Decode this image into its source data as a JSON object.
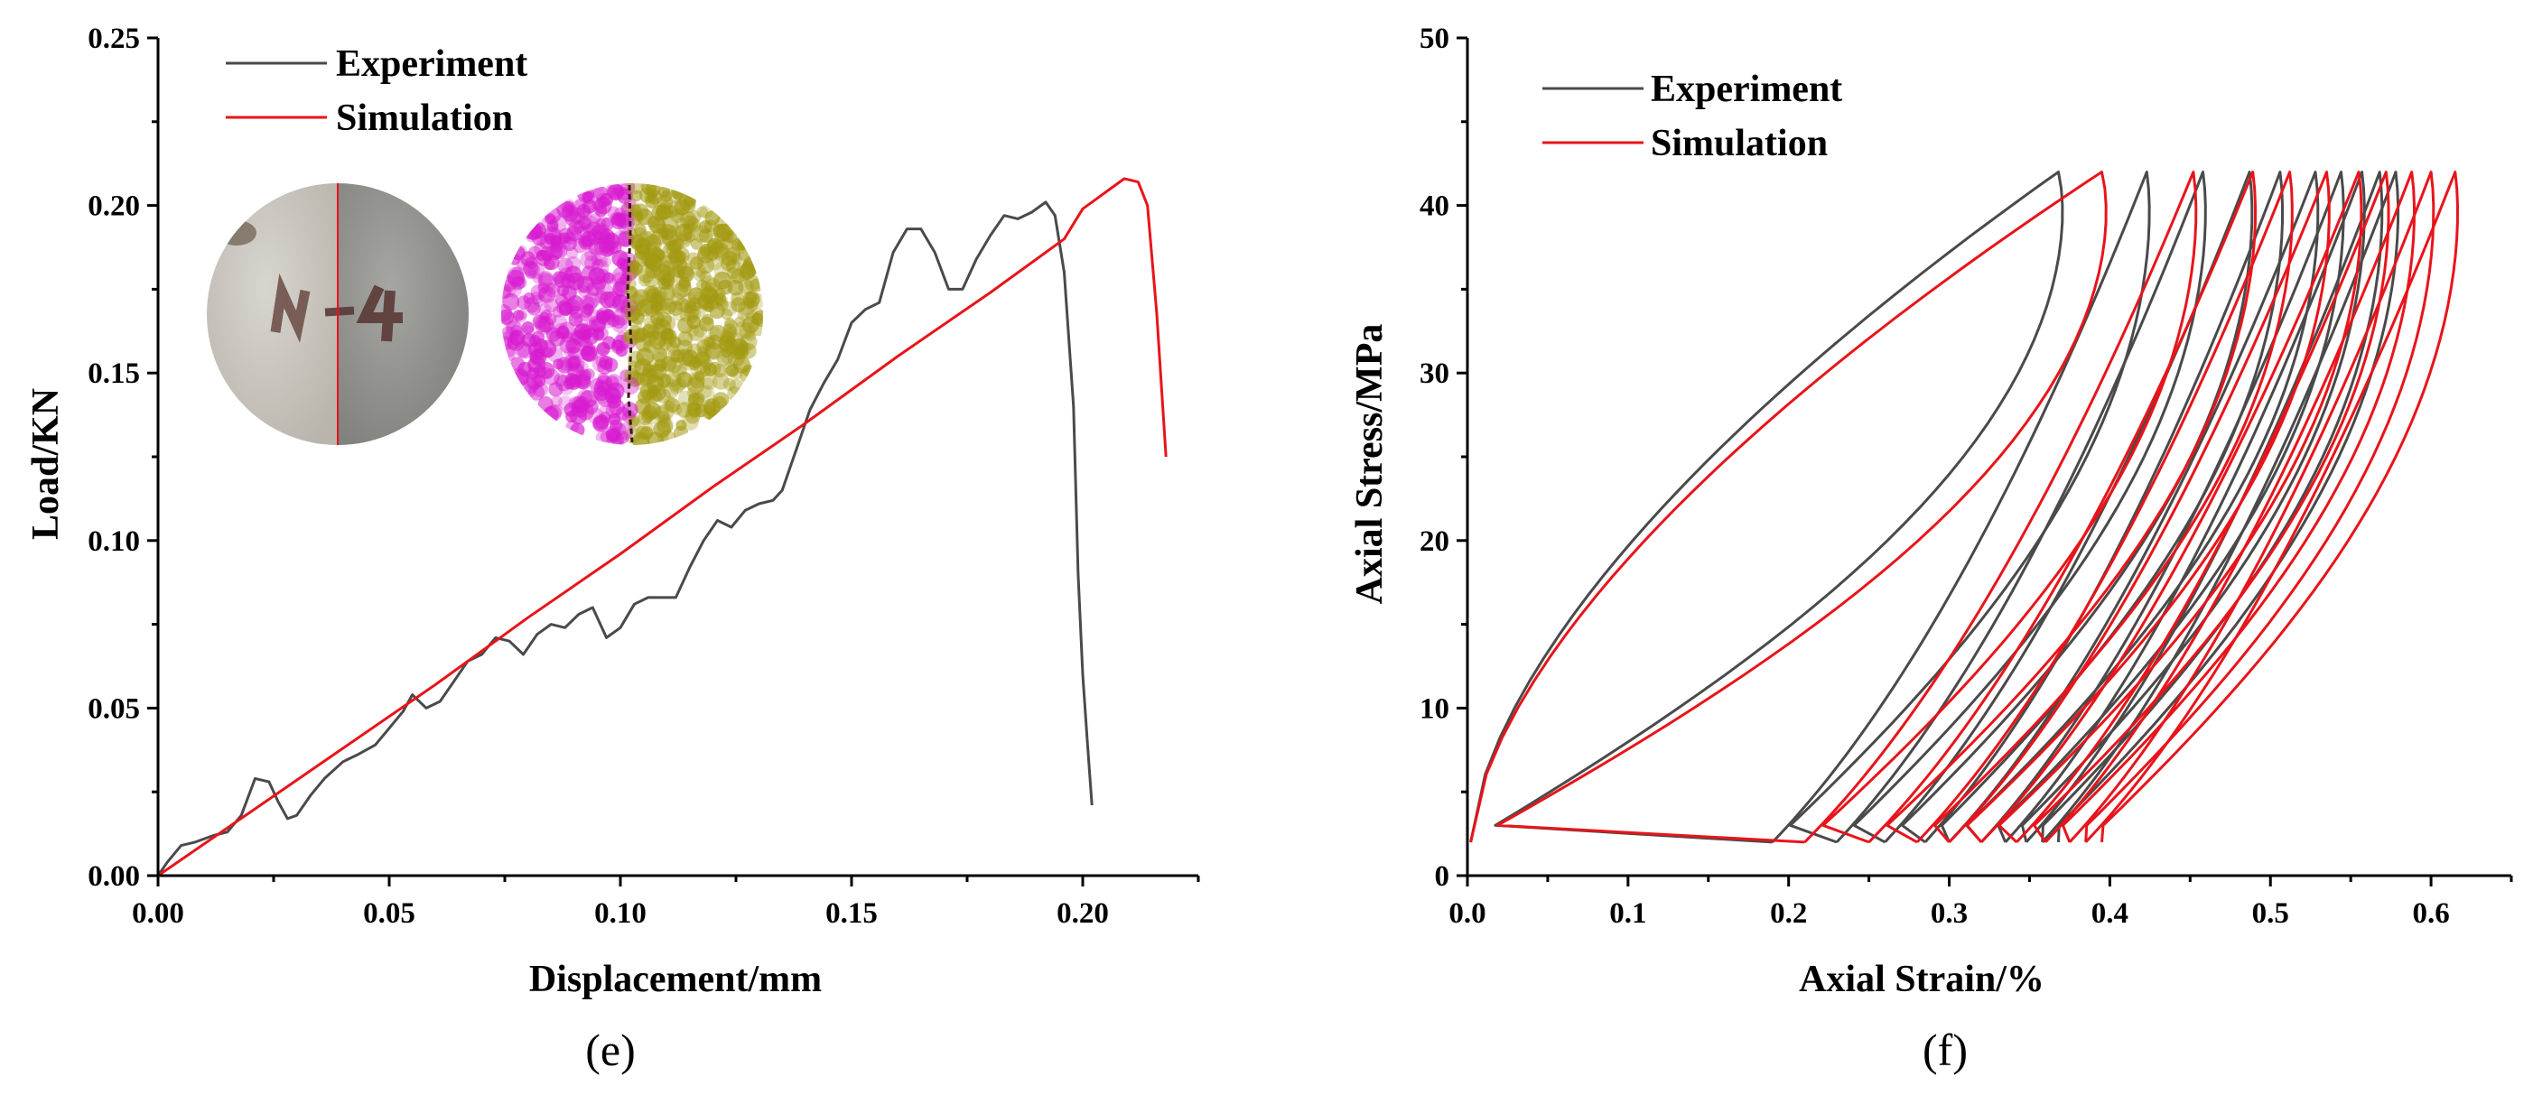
{
  "figure": {
    "panel_labels": [
      "(e)",
      "(f)"
    ]
  },
  "colors": {
    "experiment": "#4a4a4a",
    "simulation": "#e8141b",
    "axis": "#000000",
    "rock_light": "#cfccc4",
    "rock_dark": "#8e8e8b",
    "particle_magenta": "#d81bd0",
    "particle_olive": "#a39a12"
  },
  "chart_data": [
    {
      "type": "line",
      "panel": "(e)",
      "title": "",
      "xlabel": "Displacement/mm",
      "ylabel": "Load/KN",
      "xlim": [
        0,
        0.225
      ],
      "ylim": [
        0,
        0.25
      ],
      "xticks": [
        0.0,
        0.05,
        0.1,
        0.15,
        0.2
      ],
      "xtick_labels": [
        "0.00",
        "0.05",
        "0.10",
        "0.15",
        "0.20"
      ],
      "yticks": [
        0.0,
        0.05,
        0.1,
        0.15,
        0.2,
        0.25
      ],
      "ytick_labels": [
        "0.00",
        "0.05",
        "0.10",
        "0.15",
        "0.20",
        "0.25"
      ],
      "legend": [
        "Experiment",
        "Simulation"
      ],
      "legend_position": "top-left",
      "inset": "specimen photo with marking and DEM particle model (split halves)",
      "series": [
        {
          "name": "Experiment",
          "x": [
            0,
            0.002,
            0.005,
            0.008,
            0.012,
            0.015,
            0.018,
            0.021,
            0.024,
            0.026,
            0.028,
            0.03,
            0.033,
            0.036,
            0.04,
            0.043,
            0.047,
            0.05,
            0.053,
            0.055,
            0.058,
            0.061,
            0.064,
            0.067,
            0.07,
            0.073,
            0.076,
            0.079,
            0.082,
            0.085,
            0.088,
            0.091,
            0.094,
            0.097,
            0.1,
            0.103,
            0.106,
            0.109,
            0.112,
            0.115,
            0.118,
            0.121,
            0.124,
            0.127,
            0.13,
            0.133,
            0.135,
            0.138,
            0.141,
            0.144,
            0.147,
            0.15,
            0.153,
            0.156,
            0.159,
            0.162,
            0.165,
            0.168,
            0.171,
            0.174,
            0.177,
            0.18,
            0.183,
            0.186,
            0.189,
            0.192,
            0.194,
            0.196,
            0.198,
            0.199,
            0.2,
            0.201,
            0.202
          ],
          "y": [
            0,
            0.004,
            0.009,
            0.01,
            0.012,
            0.013,
            0.018,
            0.029,
            0.028,
            0.022,
            0.017,
            0.018,
            0.024,
            0.029,
            0.034,
            0.036,
            0.039,
            0.044,
            0.049,
            0.054,
            0.05,
            0.052,
            0.058,
            0.064,
            0.066,
            0.071,
            0.07,
            0.066,
            0.072,
            0.075,
            0.074,
            0.078,
            0.08,
            0.071,
            0.074,
            0.081,
            0.083,
            0.083,
            0.083,
            0.092,
            0.1,
            0.106,
            0.104,
            0.109,
            0.111,
            0.112,
            0.115,
            0.127,
            0.139,
            0.147,
            0.154,
            0.165,
            0.169,
            0.171,
            0.186,
            0.193,
            0.193,
            0.186,
            0.175,
            0.175,
            0.184,
            0.191,
            0.197,
            0.196,
            0.198,
            0.201,
            0.197,
            0.18,
            0.14,
            0.09,
            0.06,
            0.04,
            0.021
          ]
        },
        {
          "name": "Simulation",
          "x": [
            0,
            0.02,
            0.04,
            0.06,
            0.08,
            0.1,
            0.12,
            0.14,
            0.16,
            0.18,
            0.19,
            0.196,
            0.2,
            0.203,
            0.206,
            0.209,
            0.212,
            0.214,
            0.216,
            0.218
          ],
          "y": [
            0,
            0.019,
            0.038,
            0.057,
            0.077,
            0.096,
            0.116,
            0.135,
            0.155,
            0.174,
            0.184,
            0.19,
            0.199,
            0.202,
            0.205,
            0.208,
            0.207,
            0.2,
            0.168,
            0.125
          ]
        }
      ]
    },
    {
      "type": "line",
      "panel": "(f)",
      "title": "",
      "xlabel": "Axial Strain/%",
      "ylabel": "Axial Stress/MPa",
      "xlim": [
        0,
        0.65
      ],
      "ylim": [
        0,
        50
      ],
      "xticks": [
        0.0,
        0.1,
        0.2,
        0.3,
        0.4,
        0.5,
        0.6
      ],
      "xtick_labels": [
        "0.0",
        "0.1",
        "0.2",
        "0.3",
        "0.4",
        "0.5",
        "0.6"
      ],
      "yticks": [
        0,
        10,
        20,
        30,
        40,
        50
      ],
      "ytick_labels": [
        "0",
        "10",
        "20",
        "30",
        "40",
        "50"
      ],
      "legend": [
        "Experiment",
        "Simulation"
      ],
      "legend_position": "top-left",
      "cycle_peak_stress": 42,
      "cycle_min_stress": 2,
      "series": [
        {
          "name": "Experiment",
          "peak_strain": [
            0.368,
            0.423,
            0.458,
            0.487,
            0.506,
            0.528,
            0.544,
            0.557,
            0.568,
            0.578
          ],
          "unload_strain": [
            0.19,
            0.23,
            0.26,
            0.285,
            0.3,
            0.32,
            0.335,
            0.348,
            0.358,
            0.368
          ]
        },
        {
          "name": "Simulation",
          "peak_strain": [
            0.395,
            0.452,
            0.489,
            0.512,
            0.535,
            0.555,
            0.572,
            0.588,
            0.6,
            0.615
          ],
          "unload_strain": [
            0.21,
            0.25,
            0.28,
            0.3,
            0.32,
            0.342,
            0.36,
            0.375,
            0.385,
            0.395
          ]
        }
      ]
    }
  ]
}
